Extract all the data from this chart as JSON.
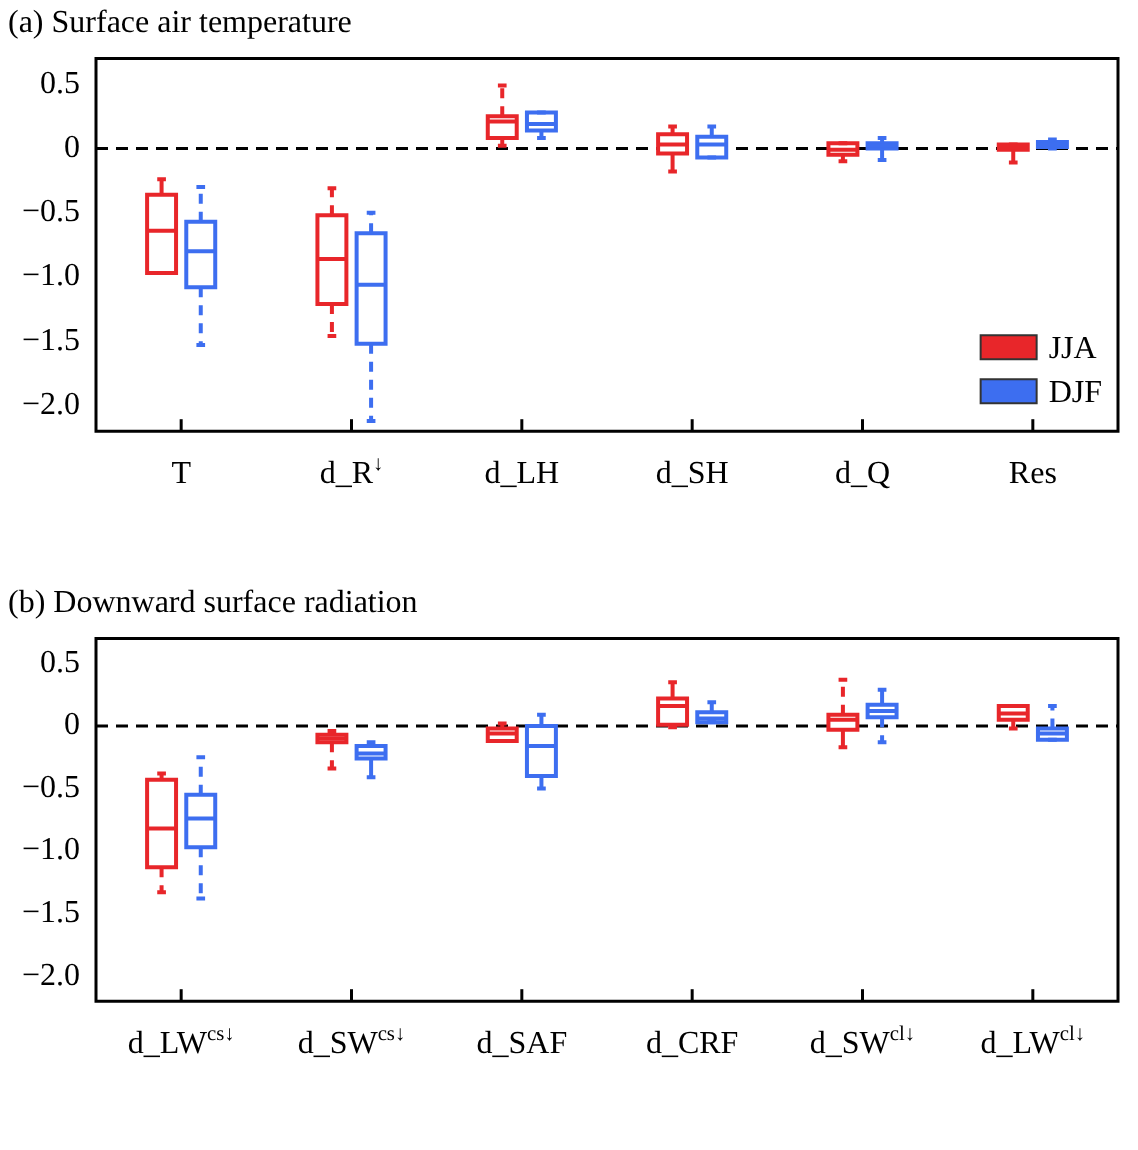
{
  "chart_data": [
    {
      "type": "box",
      "title": "(a) Surface air temperature",
      "categories": [
        "T",
        "d_R$^{↓}$",
        "d_LH",
        "d_SH",
        "d_Q",
        "Res"
      ],
      "series": [
        {
          "name": "JJA",
          "color": "#e8262a",
          "boxes": [
            {
              "low": -0.97,
              "q1": -0.97,
              "median": -0.64,
              "q3": -0.36,
              "high": -0.24
            },
            {
              "low": -1.46,
              "q1": -1.21,
              "median": -0.86,
              "q3": -0.52,
              "high": -0.31
            },
            {
              "low": 0.02,
              "q1": 0.08,
              "median": 0.21,
              "q3": 0.25,
              "high": 0.49
            },
            {
              "low": -0.18,
              "q1": -0.04,
              "median": 0.03,
              "q3": 0.11,
              "high": 0.17
            },
            {
              "low": -0.1,
              "q1": -0.05,
              "median": -0.01,
              "q3": 0.04,
              "high": 0.04
            },
            {
              "low": -0.11,
              "q1": -0.01,
              "median": 0.01,
              "q3": 0.03,
              "high": 0.03
            }
          ]
        },
        {
          "name": "DJF",
          "color": "#3d6ef0",
          "boxes": [
            {
              "low": -1.53,
              "q1": -1.08,
              "median": -0.8,
              "q3": -0.57,
              "high": -0.3
            },
            {
              "low": -2.12,
              "q1": -1.52,
              "median": -1.06,
              "q3": -0.66,
              "high": -0.5
            },
            {
              "low": 0.08,
              "q1": 0.14,
              "median": 0.19,
              "q3": 0.28,
              "high": 0.28
            },
            {
              "low": -0.07,
              "q1": -0.07,
              "median": 0.03,
              "q3": 0.09,
              "high": 0.17
            },
            {
              "low": -0.09,
              "q1": 0.0,
              "median": 0.02,
              "q3": 0.04,
              "high": 0.08
            },
            {
              "low": 0.0,
              "q1": 0.01,
              "median": 0.03,
              "q3": 0.05,
              "high": 0.07
            }
          ]
        }
      ],
      "ylim": [
        -2.2,
        0.7
      ],
      "yticks": [
        {
          "value": -2.0,
          "label": "−2.0"
        },
        {
          "value": -1.5,
          "label": "−1.5"
        },
        {
          "value": -1.0,
          "label": "−1.0"
        },
        {
          "value": -0.5,
          "label": "−0.5"
        },
        {
          "value": 0,
          "label": "0"
        },
        {
          "value": 0.5,
          "label": "0.5"
        }
      ],
      "ref_lines": [
        {
          "axis": "y",
          "value": 0,
          "color": "#000000",
          "line_style": "dashed"
        }
      ],
      "legend": "bottom right",
      "grid": false
    },
    {
      "type": "box",
      "title": "(b) Downward surface radiation",
      "categories": [
        "d_LW$^{cs↓}$",
        "d_SW$^{cs↓}$",
        "d_SAF",
        "d_CRF",
        "d_SW$^{cl↓}$",
        "d_LW$^{cl↓}$"
      ],
      "series": [
        {
          "color": "#e8262a",
          "boxes": [
            {
              "low": -1.33,
              "q1": -1.13,
              "median": -0.82,
              "q3": -0.43,
              "high": -0.38
            },
            {
              "low": -0.34,
              "q1": -0.13,
              "median": -0.1,
              "q3": -0.07,
              "high": -0.04
            },
            {
              "low": -0.12,
              "q1": -0.12,
              "median": -0.06,
              "q3": -0.02,
              "high": 0.02
            },
            {
              "low": -0.01,
              "q1": 0.01,
              "median": 0.16,
              "q3": 0.22,
              "high": 0.35
            },
            {
              "low": -0.17,
              "q1": -0.03,
              "median": 0.05,
              "q3": 0.09,
              "high": 0.37
            },
            {
              "low": -0.02,
              "q1": 0.05,
              "median": 0.1,
              "q3": 0.16,
              "high": 0.16
            }
          ]
        },
        {
          "color": "#3d6ef0",
          "boxes": [
            {
              "low": -1.38,
              "q1": -0.97,
              "median": -0.74,
              "q3": -0.55,
              "high": -0.25
            },
            {
              "low": -0.41,
              "q1": -0.26,
              "median": -0.22,
              "q3": -0.16,
              "high": -0.13
            },
            {
              "low": -0.5,
              "q1": -0.4,
              "median": -0.16,
              "q3": 0.0,
              "high": 0.09
            },
            {
              "low": 0.03,
              "q1": 0.03,
              "median": 0.06,
              "q3": 0.11,
              "high": 0.19
            },
            {
              "low": -0.13,
              "q1": 0.07,
              "median": 0.12,
              "q3": 0.17,
              "high": 0.29
            },
            {
              "low": -0.11,
              "q1": -0.11,
              "median": -0.06,
              "q3": -0.02,
              "high": 0.16
            }
          ]
        }
      ],
      "ylim": [
        -2.2,
        0.7
      ],
      "yticks": [
        {
          "value": -2.0,
          "label": "−2.0"
        },
        {
          "value": -1.5,
          "label": "−1.5"
        },
        {
          "value": -1.0,
          "label": "−1.0"
        },
        {
          "value": -0.5,
          "label": "−0.5"
        },
        {
          "value": 0,
          "label": "0"
        },
        {
          "value": 0.5,
          "label": "0.5"
        }
      ],
      "ref_lines": [
        {
          "axis": "y",
          "value": 0,
          "color": "#000000",
          "line_style": "dashed"
        }
      ],
      "legend": false,
      "grid": false
    }
  ]
}
